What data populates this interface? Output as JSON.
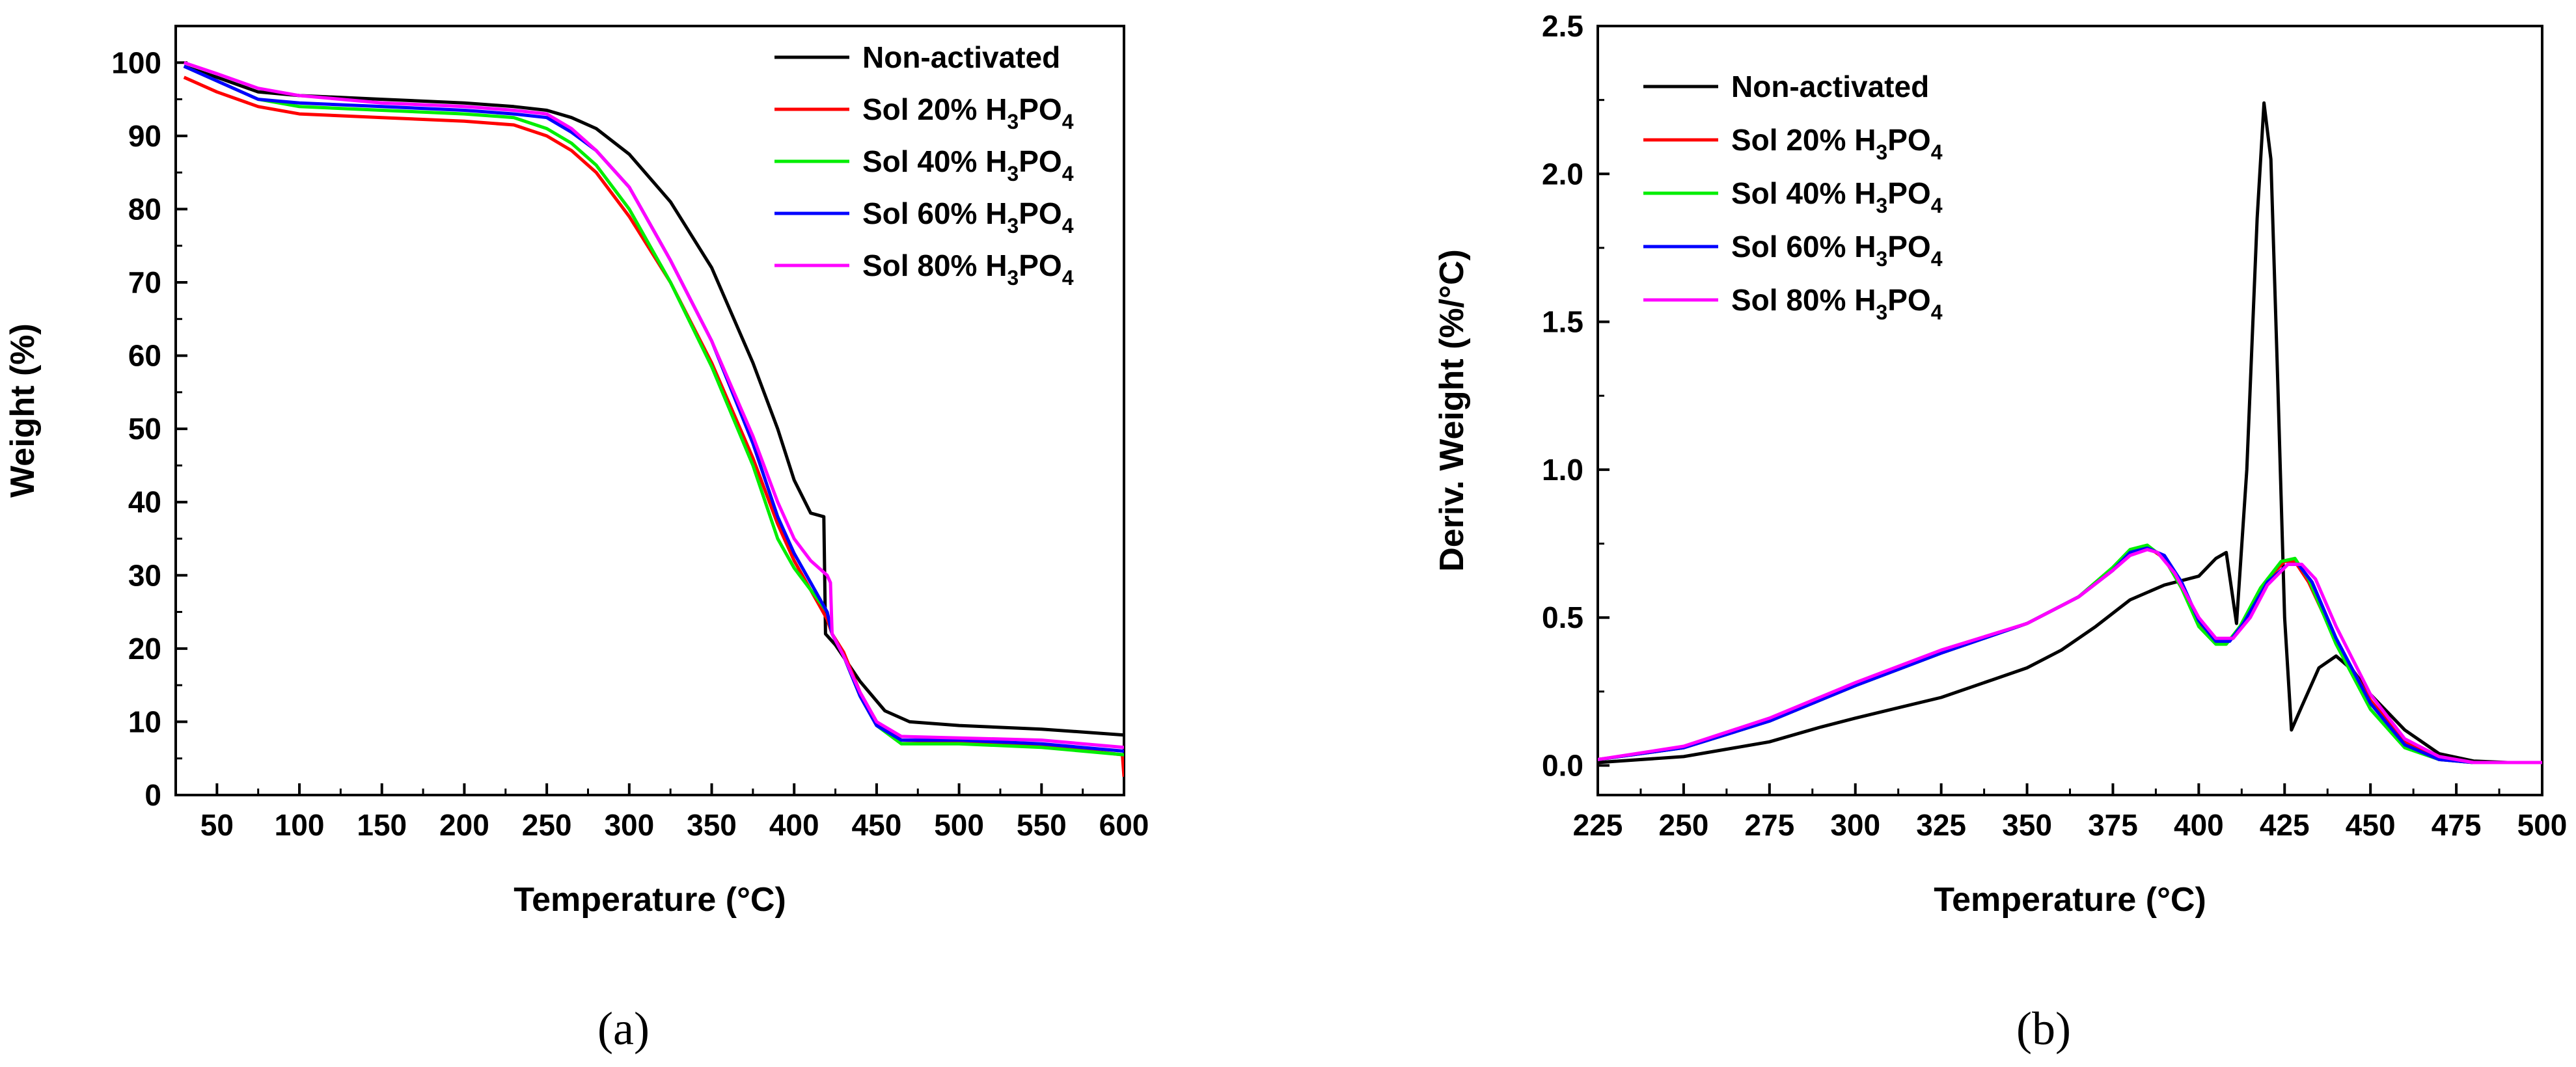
{
  "colors": {
    "non_activated": "#000000",
    "sol20": "#ff0000",
    "sol40": "#00ee00",
    "sol60": "#0000ff",
    "sol80": "#ff00ff"
  },
  "panels": {
    "a": {
      "caption": "(a)"
    },
    "b": {
      "caption": "(b)"
    }
  },
  "chart_data": [
    {
      "id": "a",
      "type": "line",
      "xlabel": "Temperature (°C)",
      "ylabel": "Weight (%)",
      "xlim": [
        25,
        600
      ],
      "ylim": [
        0,
        105
      ],
      "xticks": [
        50,
        100,
        150,
        200,
        250,
        300,
        350,
        400,
        450,
        500,
        550,
        600
      ],
      "yticks": [
        0,
        10,
        20,
        30,
        40,
        50,
        60,
        70,
        80,
        90,
        100
      ],
      "grid": false,
      "legend_position": "top-right",
      "legend": [
        {
          "label": "Non-activated",
          "sub": "",
          "tail": ""
        },
        {
          "label": "Sol 20% H",
          "sub": "3",
          "tail": "PO",
          "sub2": "4"
        },
        {
          "label": "Sol 40% H",
          "sub": "3",
          "tail": "PO",
          "sub2": "4"
        },
        {
          "label": "Sol 60% H",
          "sub": "3",
          "tail": "PO",
          "sub2": "4"
        },
        {
          "label": "Sol 80% H",
          "sub": "3",
          "tail": "PO",
          "sub2": "4"
        }
      ],
      "series": [
        {
          "name": "Non-activated",
          "color": "#000000",
          "x": [
            30,
            50,
            75,
            100,
            150,
            200,
            230,
            250,
            265,
            280,
            300,
            325,
            350,
            375,
            390,
            400,
            410,
            418,
            419,
            425,
            440,
            455,
            470,
            500,
            550,
            600
          ],
          "y": [
            99.5,
            98,
            96,
            95.5,
            95,
            94.5,
            94,
            93.5,
            92.5,
            91,
            87.5,
            81,
            72,
            59,
            50,
            43,
            38.5,
            38,
            22,
            20.5,
            15.5,
            11.5,
            10,
            9.5,
            9.0,
            8.2
          ]
        },
        {
          "name": "Sol 20% H3PO4",
          "color": "#ff0000",
          "x": [
            30,
            50,
            75,
            100,
            150,
            200,
            230,
            250,
            265,
            280,
            300,
            325,
            350,
            375,
            390,
            400,
            410,
            420,
            423,
            430,
            440,
            450,
            465,
            500,
            550,
            599,
            600
          ],
          "y": [
            98,
            96,
            94,
            93,
            92.5,
            92,
            91.5,
            90,
            88,
            85,
            79,
            70,
            59,
            46,
            37,
            32,
            28,
            24,
            22,
            19.5,
            14,
            10,
            7.5,
            7.2,
            6.8,
            5.5,
            2.5
          ]
        },
        {
          "name": "Sol 40% H3PO4",
          "color": "#00ee00",
          "x": [
            30,
            50,
            75,
            100,
            150,
            200,
            230,
            250,
            265,
            280,
            300,
            325,
            350,
            375,
            390,
            400,
            410,
            420,
            423,
            430,
            440,
            450,
            465,
            500,
            550,
            600
          ],
          "y": [
            99.5,
            97.5,
            95,
            94,
            93.5,
            93,
            92.5,
            91,
            89,
            86,
            80,
            70,
            58.5,
            45,
            35,
            31,
            28,
            25,
            22,
            19,
            13.5,
            9.5,
            7.0,
            7.0,
            6.5,
            5.5
          ]
        },
        {
          "name": "Sol 60% H3PO4",
          "color": "#0000ff",
          "x": [
            30,
            50,
            75,
            100,
            150,
            200,
            230,
            250,
            265,
            280,
            300,
            325,
            350,
            375,
            390,
            400,
            410,
            420,
            423,
            430,
            440,
            450,
            465,
            500,
            550,
            600
          ],
          "y": [
            99.5,
            97.5,
            95,
            94.5,
            94,
            93.5,
            93,
            92.5,
            90.5,
            88,
            83,
            73,
            62,
            48,
            38,
            33,
            29,
            25,
            22,
            19,
            13.5,
            9.5,
            7.5,
            7.5,
            7.0,
            6.0
          ]
        },
        {
          "name": "Sol 80% H3PO4",
          "color": "#ff00ff",
          "x": [
            30,
            50,
            75,
            100,
            150,
            200,
            230,
            250,
            265,
            280,
            300,
            325,
            350,
            375,
            390,
            400,
            410,
            420,
            422,
            423,
            430,
            440,
            450,
            465,
            500,
            550,
            600
          ],
          "y": [
            100,
            98.5,
            96.5,
            95.5,
            94.5,
            94,
            93.5,
            93,
            91,
            88,
            83,
            73,
            62,
            49,
            40,
            35,
            32,
            30,
            29,
            22,
            19,
            14,
            10,
            8,
            7.8,
            7.5,
            6.5
          ]
        }
      ]
    },
    {
      "id": "b",
      "type": "line",
      "xlabel": "Temperature (°C)",
      "ylabel": "Deriv. Weight (%/°C)",
      "xlim": [
        225,
        500
      ],
      "ylim": [
        -0.1,
        2.5
      ],
      "xticks": [
        225,
        250,
        275,
        300,
        325,
        350,
        375,
        400,
        425,
        450,
        475,
        500
      ],
      "yticks": [
        0.0,
        0.5,
        1.0,
        1.5,
        2.0,
        2.5
      ],
      "grid": false,
      "legend_position": "top-left",
      "legend": [
        {
          "label": "Non-activated",
          "sub": "",
          "tail": ""
        },
        {
          "label": "Sol 20% H",
          "sub": "3",
          "tail": "PO",
          "sub2": "4"
        },
        {
          "label": "Sol 40% H",
          "sub": "3",
          "tail": "PO",
          "sub2": "4"
        },
        {
          "label": "Sol 60% H",
          "sub": "3",
          "tail": "PO",
          "sub2": "4"
        },
        {
          "label": "Sol 80% H",
          "sub": "3",
          "tail": "PO",
          "sub2": "4"
        }
      ],
      "series": [
        {
          "name": "Non-activated",
          "color": "#000000",
          "x": [
            225,
            250,
            275,
            290,
            300,
            325,
            340,
            350,
            360,
            370,
            380,
            390,
            400,
            405,
            408,
            411,
            414,
            417,
            419,
            421,
            423,
            425,
            427,
            430,
            435,
            440,
            445,
            450,
            460,
            470,
            480,
            490,
            500
          ],
          "y": [
            0.01,
            0.03,
            0.08,
            0.13,
            0.16,
            0.23,
            0.29,
            0.33,
            0.39,
            0.47,
            0.56,
            0.61,
            0.64,
            0.7,
            0.72,
            0.48,
            1.0,
            1.85,
            2.24,
            2.05,
            1.3,
            0.5,
            0.12,
            0.2,
            0.33,
            0.37,
            0.32,
            0.24,
            0.12,
            0.04,
            0.015,
            0.01,
            0.01
          ]
        },
        {
          "name": "Sol 20% H3PO4",
          "color": "#ff0000",
          "x": [
            225,
            250,
            275,
            300,
            325,
            350,
            365,
            375,
            380,
            385,
            390,
            395,
            400,
            405,
            410,
            415,
            420,
            425,
            428,
            432,
            440,
            450,
            460,
            470,
            480,
            490,
            500
          ],
          "y": [
            0.02,
            0.06,
            0.15,
            0.27,
            0.38,
            0.48,
            0.57,
            0.66,
            0.72,
            0.74,
            0.7,
            0.6,
            0.48,
            0.42,
            0.43,
            0.52,
            0.63,
            0.69,
            0.69,
            0.62,
            0.42,
            0.22,
            0.08,
            0.02,
            0.01,
            0.01,
            0.01
          ]
        },
        {
          "name": "Sol 40% H3PO4",
          "color": "#00ee00",
          "x": [
            225,
            250,
            275,
            300,
            325,
            350,
            365,
            375,
            380,
            385,
            390,
            395,
            400,
            405,
            408,
            412,
            418,
            424,
            428,
            432,
            440,
            450,
            460,
            470,
            480,
            490,
            500
          ],
          "y": [
            0.02,
            0.06,
            0.15,
            0.27,
            0.38,
            0.48,
            0.57,
            0.67,
            0.73,
            0.745,
            0.7,
            0.6,
            0.47,
            0.41,
            0.41,
            0.47,
            0.6,
            0.69,
            0.7,
            0.63,
            0.41,
            0.19,
            0.06,
            0.02,
            0.01,
            0.01,
            0.01
          ]
        },
        {
          "name": "Sol 60% H3PO4",
          "color": "#0000ff",
          "x": [
            225,
            250,
            275,
            300,
            325,
            350,
            365,
            375,
            380,
            385,
            390,
            395,
            400,
            405,
            409,
            413,
            420,
            426,
            429,
            433,
            440,
            450,
            460,
            470,
            480,
            490,
            500
          ],
          "y": [
            0.02,
            0.06,
            0.15,
            0.27,
            0.38,
            0.48,
            0.57,
            0.66,
            0.72,
            0.735,
            0.71,
            0.62,
            0.49,
            0.42,
            0.42,
            0.48,
            0.62,
            0.68,
            0.68,
            0.62,
            0.43,
            0.21,
            0.07,
            0.02,
            0.01,
            0.01,
            0.01
          ]
        },
        {
          "name": "Sol 80% H3PO4",
          "color": "#ff00ff",
          "x": [
            225,
            250,
            275,
            300,
            325,
            350,
            365,
            375,
            380,
            385,
            388,
            393,
            400,
            405,
            410,
            415,
            420,
            426,
            430,
            434,
            440,
            450,
            460,
            470,
            480,
            490,
            500
          ],
          "y": [
            0.02,
            0.065,
            0.16,
            0.28,
            0.39,
            0.48,
            0.57,
            0.66,
            0.71,
            0.73,
            0.72,
            0.65,
            0.5,
            0.43,
            0.43,
            0.5,
            0.61,
            0.68,
            0.68,
            0.63,
            0.47,
            0.24,
            0.09,
            0.03,
            0.01,
            0.01,
            0.01
          ]
        }
      ]
    }
  ]
}
